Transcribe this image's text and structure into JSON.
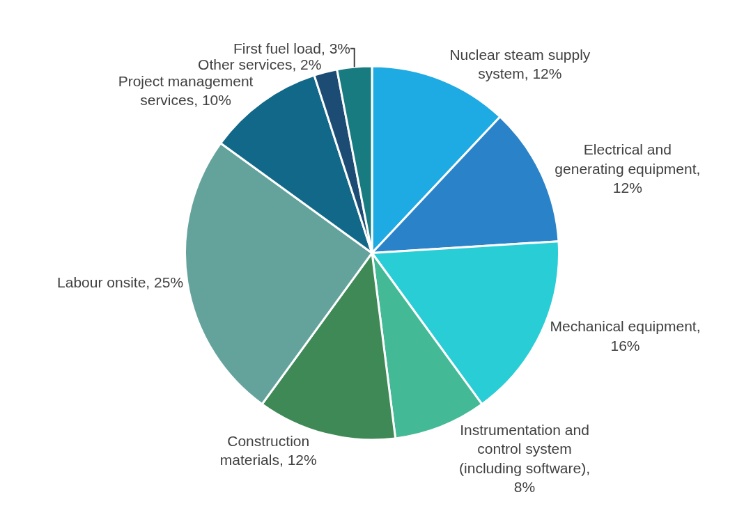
{
  "chart_data": {
    "type": "pie",
    "categories": [
      "Nuclear steam supply system, 12%",
      "Electrical and generating equipment, 12%",
      "Mechanical equipment, 16%",
      "Instrumentation and control system (including software), 8%",
      "Construction materials, 12%",
      "Labour onsite, 25%",
      "Project management services, 10%",
      "Other services, 2%",
      "First fuel load, 3%"
    ],
    "values": [
      12,
      12,
      16,
      8,
      12,
      25,
      10,
      2,
      3
    ],
    "colors": [
      "#1eaae3",
      "#2a82c8",
      "#28cdd6",
      "#43b996",
      "#3e8955",
      "#64a39c",
      "#116888",
      "#1c4b73",
      "#187b80"
    ],
    "legend": false
  }
}
